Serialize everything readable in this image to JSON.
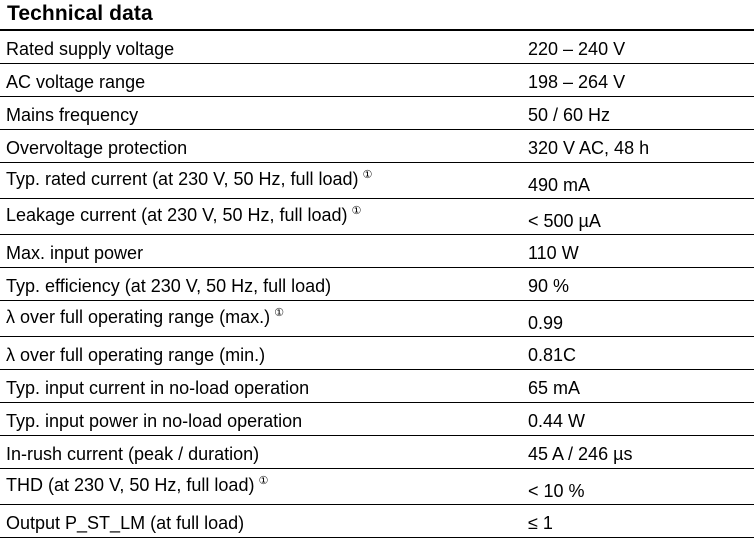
{
  "section": {
    "title": "Technical data"
  },
  "footnote_symbol": "①",
  "rows": [
    {
      "param": "Rated supply voltage",
      "value": "220 – 240 V",
      "note": ""
    },
    {
      "param": "AC voltage range",
      "value": "198 – 264 V",
      "note": ""
    },
    {
      "param": "Mains frequency",
      "value": "50 / 60 Hz",
      "note": ""
    },
    {
      "param": "Overvoltage protection",
      "value": "320 V AC, 48 h",
      "note": ""
    },
    {
      "param": "Typ. rated current (at 230 V, 50 Hz, full load)",
      "value": "490 mA",
      "note": "①"
    },
    {
      "param": "Leakage current (at 230 V, 50 Hz, full load)",
      "value": "< 500 µA",
      "note": "①"
    },
    {
      "param": "Max. input power",
      "value": "110 W",
      "note": ""
    },
    {
      "param": "Typ. efficiency (at 230 V, 50 Hz, full load)",
      "value": "90 %",
      "note": ""
    },
    {
      "param": "λ over full operating range (max.)",
      "value": "0.99",
      "note": "①"
    },
    {
      "param": "λ over full operating range (min.)",
      "value": "0.81C",
      "note": ""
    },
    {
      "param": "Typ. input current in no-load operation",
      "value": "65 mA",
      "note": ""
    },
    {
      "param": "Typ. input power in no-load operation",
      "value": "0.44 W",
      "note": ""
    },
    {
      "param": "In-rush current (peak / duration)",
      "value": "45 A / 246 µs",
      "note": ""
    },
    {
      "param": "THD (at 230 V, 50 Hz, full load)",
      "value": "< 10 %",
      "note": "①"
    },
    {
      "param": "Output P_ST_LM (at full load)",
      "value": "≤ 1",
      "note": ""
    }
  ]
}
